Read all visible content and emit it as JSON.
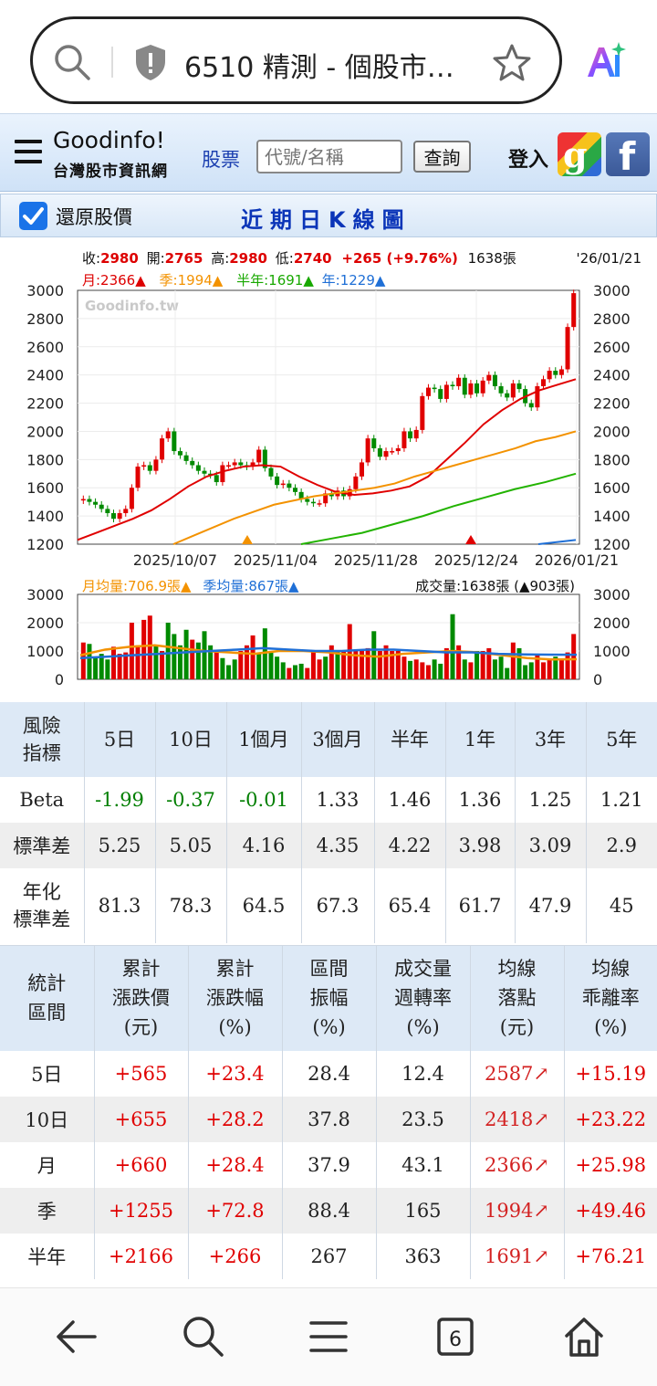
{
  "browser": {
    "url_text": "6510 精測 - 個股市…",
    "icons": [
      "search-icon",
      "shield-icon",
      "star-icon",
      "ai-icon"
    ]
  },
  "header": {
    "logo_title": "Goodinfo!",
    "logo_sub": "台灣股市資訊網",
    "nav_stock": "股票",
    "search_placeholder": "代號/名稱",
    "query_button": "查詢",
    "login": "登入",
    "google_label": "g",
    "facebook_label": "f"
  },
  "chart_header": {
    "restore_label": "還原股價",
    "title": "近期日K線圖"
  },
  "quote": {
    "close_label": "收:",
    "close": "2980",
    "open_label": "開:",
    "open": "2765",
    "high_label": "高:",
    "high": "2980",
    "low_label": "低:",
    "low": "2740",
    "change": "+265 (+9.76%)",
    "volume": "1638張",
    "date": "'26/01/21"
  },
  "ma_legend": {
    "month": "月:2366▲",
    "season": "季:1994▲",
    "half": "半年:1691▲",
    "year": "年:1229▲"
  },
  "chart_data": [
    {
      "type": "line",
      "watermark": "Goodinfo.tw",
      "ylim": [
        1200,
        3000
      ],
      "y_ticks": [
        1200,
        1400,
        1600,
        1800,
        2000,
        2200,
        2400,
        2600,
        2800,
        3000
      ],
      "x_ticks": [
        "2025/10/07",
        "2025/11/04",
        "2025/11/28",
        "2025/12/24",
        "2026/01/21"
      ],
      "candles_close": [
        1520,
        1500,
        1480,
        1450,
        1420,
        1380,
        1420,
        1450,
        1600,
        1750,
        1760,
        1720,
        1800,
        1950,
        2000,
        1860,
        1830,
        1790,
        1760,
        1720,
        1700,
        1690,
        1640,
        1760,
        1760,
        1780,
        1760,
        1750,
        1780,
        1870,
        1740,
        1680,
        1620,
        1630,
        1600,
        1570,
        1520,
        1500,
        1490,
        1490,
        1560,
        1540,
        1580,
        1540,
        1590,
        1680,
        1780,
        1950,
        1880,
        1820,
        1860,
        1860,
        1880,
        2000,
        1950,
        2010,
        2250,
        2310,
        2300,
        2230,
        2330,
        2320,
        2380,
        2260,
        2340,
        2270,
        2360,
        2400,
        2320,
        2270,
        2240,
        2340,
        2300,
        2200,
        2170,
        2320,
        2370,
        2430,
        2400,
        2440,
        2740,
        2980
      ],
      "series": [
        {
          "name": "月",
          "color": "#e00000",
          "values": [
            1230,
            1280,
            1330,
            1380,
            1440,
            1520,
            1610,
            1680,
            1720,
            1750,
            1760,
            1750,
            1680,
            1620,
            1570,
            1550,
            1560,
            1580,
            1610,
            1680,
            1800,
            1920,
            2050,
            2150,
            2230,
            2290,
            2330,
            2370
          ]
        },
        {
          "name": "季",
          "color": "#f39200",
          "values": [
            1200,
            1260,
            1320,
            1380,
            1430,
            1480,
            1510,
            1540,
            1560,
            1580,
            1600,
            1630,
            1680,
            1720,
            1760,
            1800,
            1840,
            1880,
            1930,
            1960,
            2000
          ]
        },
        {
          "name": "半年",
          "color": "#22b300",
          "values": [
            1200,
            1240,
            1280,
            1340,
            1400,
            1470,
            1530,
            1590,
            1640,
            1700
          ]
        },
        {
          "name": "年",
          "color": "#1f6fd6",
          "values": [
            1200,
            1230
          ]
        }
      ]
    },
    {
      "type": "bar",
      "ylim": [
        0,
        3000
      ],
      "y_ticks": [
        0,
        1000,
        2000,
        3000
      ],
      "legend_month": "月均量:706.9張▲",
      "legend_season": "季均量:867張▲",
      "legend_total": "成交量:1638張 (▲903張)",
      "values": [
        1300,
        1250,
        800,
        900,
        700,
        1150,
        900,
        950,
        2000,
        1200,
        2100,
        2250,
        1200,
        1000,
        2000,
        1600,
        1200,
        1750,
        1400,
        1300,
        1700,
        1200,
        1000,
        750,
        500,
        700,
        1000,
        1200,
        1550,
        900,
        1800,
        1000,
        800,
        600,
        400,
        500,
        550,
        400,
        1000,
        700,
        800,
        1200,
        1000,
        1000,
        1950,
        1000,
        1000,
        1100,
        1700,
        1000,
        1200,
        1000,
        1000,
        800,
        650,
        700,
        600,
        500,
        700,
        550,
        1100,
        2300,
        1200,
        700,
        600,
        1000,
        1000,
        1100,
        700,
        800,
        400,
        1300,
        1100,
        500,
        600,
        900,
        600,
        700,
        800,
        700,
        950,
        1600
      ],
      "up": [
        1,
        0,
        0,
        0,
        0,
        1,
        1,
        1,
        1,
        1,
        1,
        1,
        0,
        1,
        0,
        0,
        0,
        0,
        1,
        0,
        0,
        0,
        1,
        0,
        0,
        0,
        1,
        1,
        1,
        0,
        0,
        0,
        0,
        0,
        1,
        0,
        0,
        1,
        1,
        1,
        0,
        1,
        0,
        1,
        1,
        1,
        1,
        1,
        0,
        1,
        1,
        1,
        1,
        1,
        0,
        1,
        1,
        1,
        0,
        0,
        1,
        0,
        1,
        0,
        1,
        0,
        1,
        1,
        0,
        0,
        0,
        1,
        0,
        0,
        0,
        1,
        1,
        1,
        0,
        1,
        1,
        1
      ],
      "series": [
        {
          "name": "月均量",
          "color": "#f39200",
          "values": [
            850,
            1050,
            1150,
            1200,
            1100,
            1000,
            950,
            900,
            1000,
            1000,
            950,
            850,
            800,
            900,
            950,
            1000,
            950,
            850,
            750,
            700,
            710
          ]
        },
        {
          "name": "季均量",
          "color": "#1f6fd6",
          "values": [
            750,
            800,
            850,
            900,
            950,
            1000,
            1050,
            1100,
            1050,
            1000,
            1000,
            1050,
            1050,
            1000,
            950,
            950,
            900,
            880,
            870,
            867
          ]
        }
      ]
    }
  ],
  "risk_table": {
    "headers": [
      "風險\n指標",
      "5日",
      "10日",
      "1個月",
      "3個月",
      "半年",
      "1年",
      "3年",
      "5年"
    ],
    "rows": [
      [
        "Beta",
        "-1.99",
        "-0.37",
        "-0.01",
        "1.33",
        "1.46",
        "1.36",
        "1.25",
        "1.21"
      ],
      [
        "標準差",
        "5.25",
        "5.05",
        "4.16",
        "4.35",
        "4.22",
        "3.98",
        "3.09",
        "2.9"
      ],
      [
        "年化\n標準差",
        "81.3",
        "78.3",
        "64.5",
        "67.3",
        "65.4",
        "61.7",
        "47.9",
        "45"
      ]
    ]
  },
  "stat_table": {
    "headers": [
      "統計\n區間",
      "累計\n漲跌價\n(元)",
      "累計\n漲跌幅\n(%)",
      "區間\n振幅\n(%)",
      "成交量\n週轉率\n(%)",
      "均線\n落點\n(元)",
      "均線\n乖離率\n(%)"
    ],
    "rows": [
      [
        "5日",
        "+565",
        "+23.4",
        "28.4",
        "12.4",
        "2587↗",
        "+15.19"
      ],
      [
        "10日",
        "+655",
        "+28.2",
        "37.8",
        "23.5",
        "2418↗",
        "+23.22"
      ],
      [
        "月",
        "+660",
        "+28.4",
        "37.9",
        "43.1",
        "2366↗",
        "+25.98"
      ],
      [
        "季",
        "+1255",
        "+72.8",
        "88.4",
        "165",
        "1994↗",
        "+49.46"
      ],
      [
        "半年",
        "+2166",
        "+266",
        "267",
        "363",
        "1691↗",
        "+76.21"
      ]
    ]
  },
  "bottom_nav": {
    "tab_count": "6",
    "icons": [
      "back-arrow-icon",
      "search-icon",
      "menu-icon",
      "tabs-icon",
      "home-icon"
    ]
  }
}
